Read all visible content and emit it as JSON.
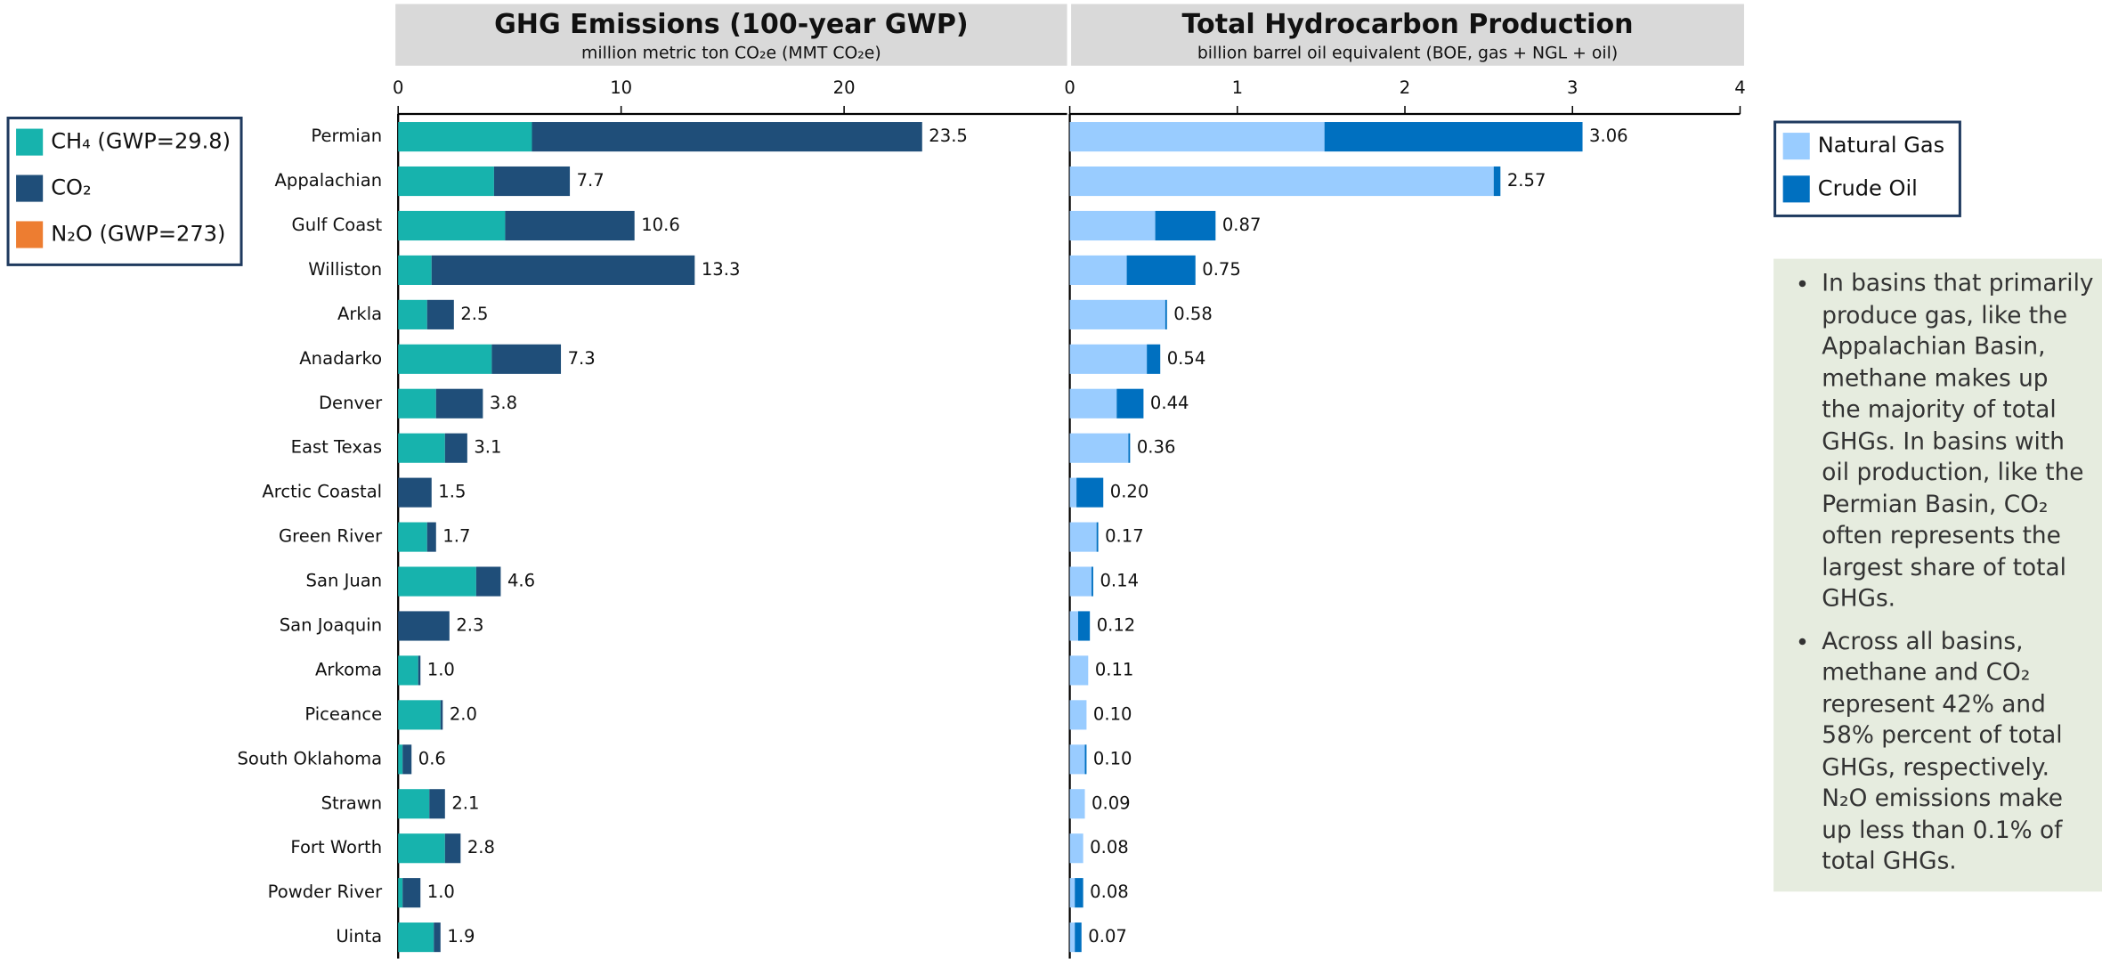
{
  "chart_data": [
    {
      "type": "bar",
      "orientation": "horizontal",
      "stacked": true,
      "title": "GHG Emissions (100-year GWP)",
      "subtitle": "million metric ton CO₂e (MMT CO₂e)",
      "categories": [
        "Permian",
        "Appalachian",
        "Gulf Coast",
        "Williston",
        "Arkla",
        "Anadarko",
        "Denver",
        "East Texas",
        "Arctic Coastal",
        "Green River",
        "San Juan",
        "San Joaquin",
        "Arkoma",
        "Piceance",
        "South Oklahoma",
        "Strawn",
        "Fort Worth",
        "Powder River",
        "Uinta"
      ],
      "series": [
        {
          "name": "CH₄ (GWP=29.8)",
          "color": "#17b3ad",
          "values": [
            6.0,
            4.3,
            4.8,
            1.5,
            1.3,
            4.2,
            1.7,
            2.1,
            0,
            1.3,
            3.5,
            0,
            0.9,
            1.9,
            0.2,
            1.4,
            2.1,
            0.2,
            1.6
          ]
        },
        {
          "name": "CO₂",
          "color": "#1f4e79",
          "values": [
            17.5,
            3.4,
            5.8,
            11.8,
            1.2,
            3.1,
            2.1,
            1.0,
            1.5,
            0.4,
            1.1,
            2.3,
            0.1,
            0.1,
            0.4,
            0.7,
            0.7,
            0.8,
            0.3
          ]
        },
        {
          "name": "N₂O (GWP=273)",
          "color": "#ed7d31",
          "values": [
            0,
            0,
            0,
            0,
            0,
            0,
            0,
            0,
            0,
            0,
            0,
            0,
            0,
            0,
            0,
            0,
            0,
            0,
            0
          ]
        }
      ],
      "totals": [
        23.5,
        7.7,
        10.6,
        13.3,
        2.5,
        7.3,
        3.8,
        3.1,
        1.5,
        1.7,
        4.6,
        2.3,
        1.0,
        2.0,
        0.6,
        2.1,
        2.8,
        1.0,
        1.9
      ],
      "total_labels": [
        "23.5",
        "7.7",
        "10.6",
        "13.3",
        "2.5",
        "7.3",
        "3.8",
        "3.1",
        "1.5",
        "1.7",
        "4.6",
        "2.3",
        "1.0",
        "2.0",
        "0.6",
        "2.1",
        "2.8",
        "1.0",
        "1.9"
      ],
      "xlim": [
        0,
        30
      ],
      "xticks": [
        0,
        10,
        20
      ],
      "legend": "left"
    },
    {
      "type": "bar",
      "orientation": "horizontal",
      "stacked": true,
      "title": "Total Hydrocarbon Production",
      "subtitle": "billion barrel oil equivalent (BOE, gas + NGL + oil)",
      "series": [
        {
          "name": "Natural Gas",
          "color": "#99ccff",
          "values": [
            1.52,
            2.53,
            0.51,
            0.34,
            0.57,
            0.46,
            0.28,
            0.35,
            0.04,
            0.16,
            0.13,
            0.05,
            0.11,
            0.1,
            0.09,
            0.09,
            0.08,
            0.03,
            0.03
          ]
        },
        {
          "name": "Crude Oil",
          "color": "#0070c0",
          "values": [
            1.54,
            0.04,
            0.36,
            0.41,
            0.01,
            0.08,
            0.16,
            0.01,
            0.16,
            0.01,
            0.01,
            0.07,
            0,
            0,
            0.01,
            0,
            0,
            0.05,
            0.04
          ]
        }
      ],
      "totals": [
        3.06,
        2.57,
        0.87,
        0.75,
        0.58,
        0.54,
        0.44,
        0.36,
        0.2,
        0.17,
        0.14,
        0.12,
        0.11,
        0.1,
        0.1,
        0.09,
        0.08,
        0.08,
        0.07
      ],
      "total_labels": [
        "3.06",
        "2.57",
        "0.87",
        "0.75",
        "0.58",
        "0.54",
        "0.44",
        "0.36",
        "0.20",
        "0.17",
        "0.14",
        "0.12",
        "0.11",
        "0.10",
        "0.10",
        "0.09",
        "0.08",
        "0.08",
        "0.07"
      ],
      "xlim": [
        0,
        4
      ],
      "xticks": [
        0,
        1,
        2,
        3,
        4
      ],
      "legend": "right"
    }
  ],
  "note": {
    "bullets": [
      "In basins that primarily produce gas, like the Appalachian Basin, methane makes up the majority of total GHGs. In basins with oil production, like the Permian Basin, CO₂ often represents the largest share of total GHGs.",
      "Across all basins, methane and CO₂ represent 42% and 58% percent of total GHGs, respectively. N₂O emissions make up less than 0.1% of total GHGs."
    ]
  }
}
